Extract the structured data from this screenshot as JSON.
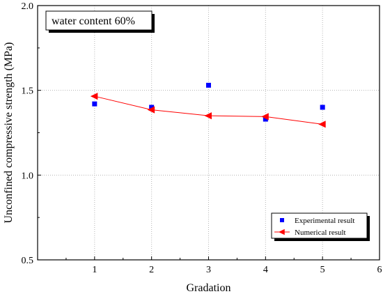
{
  "chart_data": {
    "type": "scatter",
    "xlabel": "Gradation",
    "ylabel": "Unconfined compressive strength (MPa)",
    "annotation": "water content 60%",
    "xlim": [
      0,
      6
    ],
    "ylim": [
      0.5,
      2.0
    ],
    "x_ticks": [
      1,
      2,
      3,
      4,
      5,
      6
    ],
    "x_tick_labels": [
      "1",
      "2",
      "3",
      "4",
      "5",
      "6"
    ],
    "y_ticks": [
      0.5,
      1.0,
      1.5,
      2.0
    ],
    "y_tick_labels": [
      "0.5",
      "1.0",
      "1.5",
      "2.0"
    ],
    "grid": true,
    "legend_position": "bottom-right",
    "series": [
      {
        "name": "Experimental result",
        "type": "scatter",
        "marker": "square",
        "color": "#0000ff",
        "x": [
          1,
          2,
          3,
          4,
          5
        ],
        "y": [
          1.42,
          1.4,
          1.53,
          1.33,
          1.4
        ]
      },
      {
        "name": "Numerical result",
        "type": "line",
        "marker": "triangle-left",
        "color": "#ff0000",
        "x": [
          1,
          2,
          3,
          4,
          5
        ],
        "y": [
          1.465,
          1.385,
          1.35,
          1.345,
          1.3
        ]
      }
    ]
  }
}
